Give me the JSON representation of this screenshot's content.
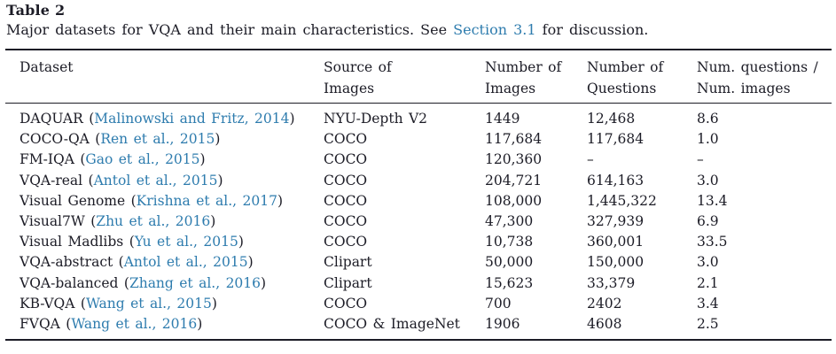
{
  "colors": {
    "text": "#1c1c26",
    "link": "#2e7cae",
    "background": "#ffffff",
    "rule": "#1c1c26"
  },
  "table": {
    "label": "Table 2",
    "caption": {
      "before": "Major datasets for VQA and their main characteristics. See ",
      "link": "Section 3.1",
      "after": " for discussion."
    },
    "headers": [
      {
        "line1": "Dataset",
        "line2": ""
      },
      {
        "line1": "Source of",
        "line2": "Images"
      },
      {
        "line1": "Number of",
        "line2": "Images"
      },
      {
        "line1": "Number of",
        "line2": "Questions"
      },
      {
        "line1": "Num. questions /",
        "line2": "Num. images"
      }
    ],
    "rows": [
      {
        "dataset": "DAQUAR",
        "open_paren": " (",
        "citation": "Malinowski and Fritz, 2014",
        "close_paren": ")",
        "source": "NYU-Depth V2",
        "num_images": "1449",
        "num_questions": "12,468",
        "ratio": "8.6"
      },
      {
        "dataset": "COCO-QA",
        "open_paren": " (",
        "citation": "Ren et al., 2015",
        "close_paren": ")",
        "source": "COCO",
        "num_images": "117,684",
        "num_questions": "117,684",
        "ratio": "1.0"
      },
      {
        "dataset": "FM-IQA",
        "open_paren": " (",
        "citation": "Gao et al., 2015",
        "close_paren": ")",
        "source": "COCO",
        "num_images": "120,360",
        "num_questions": "–",
        "ratio": "–"
      },
      {
        "dataset": "VQA-real",
        "open_paren": " (",
        "citation": "Antol et al., 2015",
        "close_paren": ")",
        "source": "COCO",
        "num_images": "204,721",
        "num_questions": "614,163",
        "ratio": "3.0"
      },
      {
        "dataset": "Visual Genome",
        "open_paren": " (",
        "citation": "Krishna et al., 2017",
        "close_paren": ")",
        "source": "COCO",
        "num_images": "108,000",
        "num_questions": "1,445,322",
        "ratio": "13.4"
      },
      {
        "dataset": "Visual7W",
        "open_paren": " (",
        "citation": "Zhu et al., 2016",
        "close_paren": ")",
        "source": "COCO",
        "num_images": "47,300",
        "num_questions": "327,939",
        "ratio": "6.9"
      },
      {
        "dataset": "Visual Madlibs",
        "open_paren": " (",
        "citation": "Yu et al., 2015",
        "close_paren": ")",
        "source": "COCO",
        "num_images": "10,738",
        "num_questions": "360,001",
        "ratio": "33.5"
      },
      {
        "dataset": "VQA-abstract",
        "open_paren": " (",
        "citation": "Antol et al., 2015",
        "close_paren": ")",
        "source": "Clipart",
        "num_images": "50,000",
        "num_questions": "150,000",
        "ratio": "3.0"
      },
      {
        "dataset": "VQA-balanced",
        "open_paren": " (",
        "citation": "Zhang et al., 2016",
        "close_paren": ")",
        "source": "Clipart",
        "num_images": "15,623",
        "num_questions": "33,379",
        "ratio": "2.1"
      },
      {
        "dataset": "KB-VQA",
        "open_paren": " (",
        "citation": "Wang et al., 2015",
        "close_paren": ")",
        "source": "COCO",
        "num_images": "700",
        "num_questions": "2402",
        "ratio": "3.4"
      },
      {
        "dataset": "FVQA",
        "open_paren": " (",
        "citation": "Wang et al., 2016",
        "close_paren": ")",
        "source": "COCO & ImageNet",
        "num_images": "1906",
        "num_questions": "4608",
        "ratio": "2.5"
      }
    ]
  }
}
